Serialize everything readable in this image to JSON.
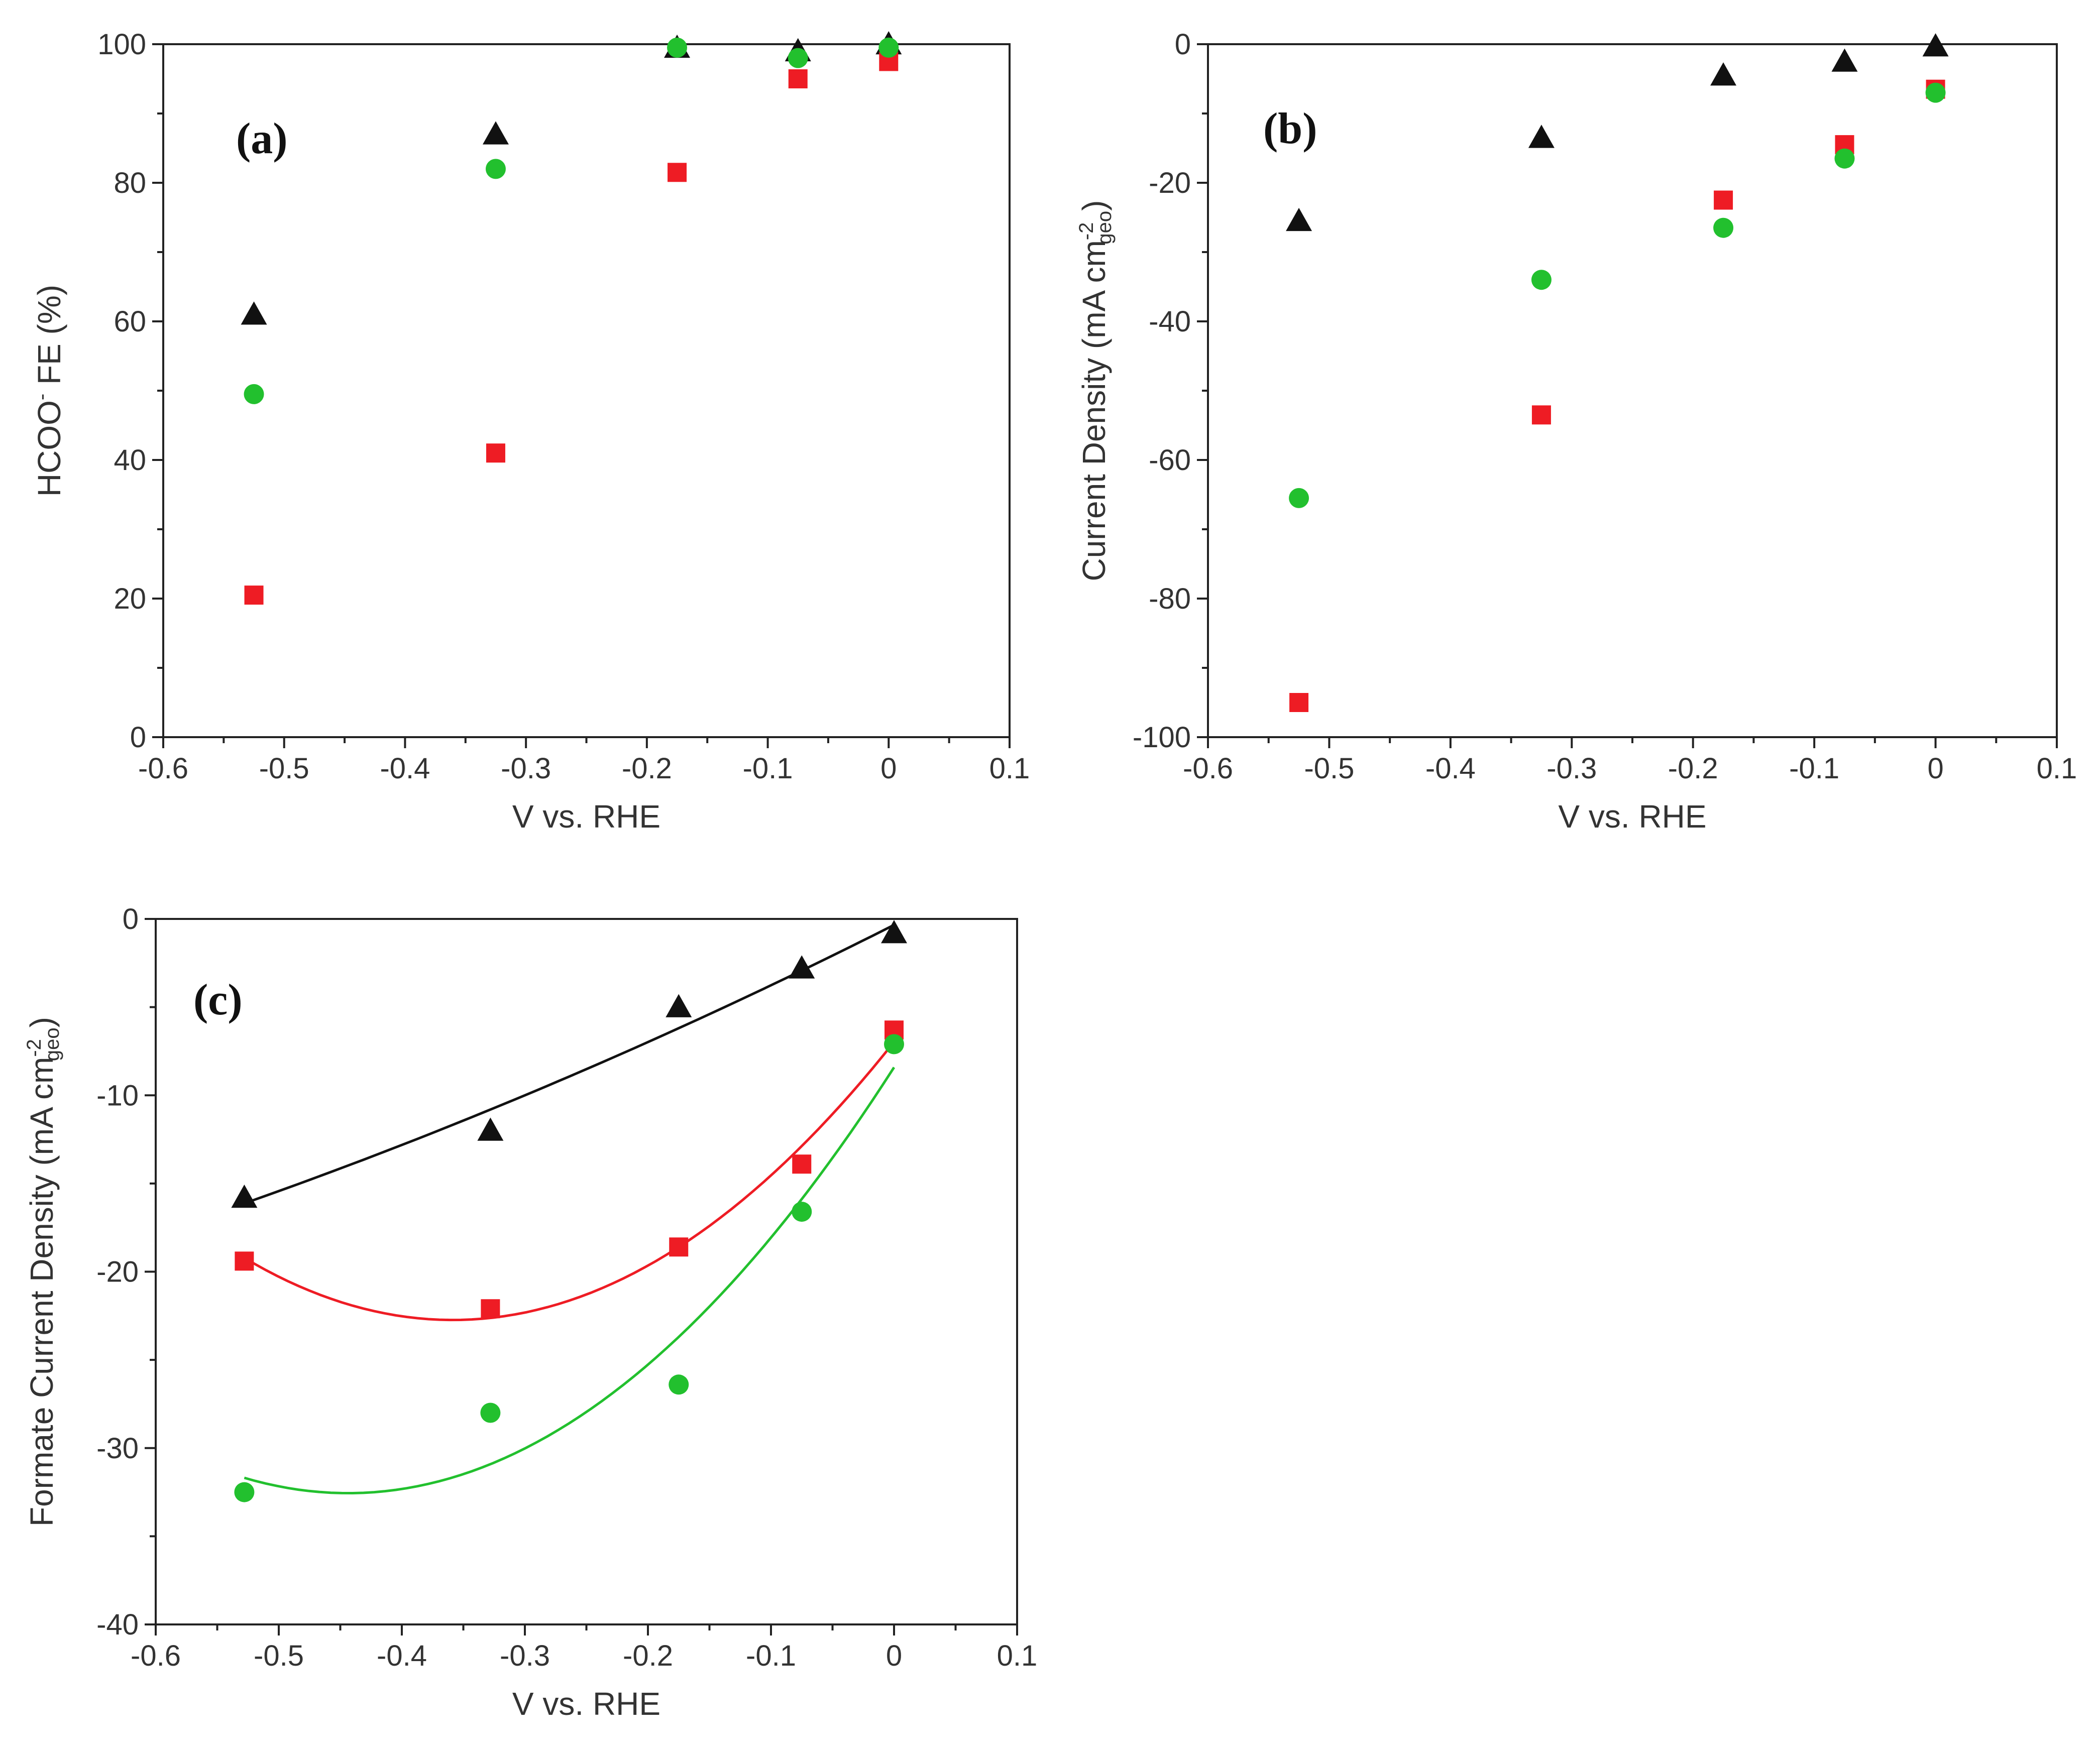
{
  "colors": {
    "black": "#111111",
    "red": "#ee1c24",
    "green": "#22c02e"
  },
  "chart_data": [
    {
      "type": "scatter",
      "panel_label": "(a)",
      "xlabel": "V vs. RHE",
      "ylabel": "HCOO⁻ FE (%)",
      "ylabel_parts": {
        "main": "HCOO",
        "sup": "-",
        "rest": " FE (%)"
      },
      "xlim": [
        -0.6,
        0.1
      ],
      "ylim": [
        0,
        100
      ],
      "xticks": [
        "-0.6",
        "-0.5",
        "-0.4",
        "-0.3",
        "-0.2",
        "-0.1",
        "0",
        "0.1"
      ],
      "yticks": [
        "0",
        "20",
        "40",
        "60",
        "80",
        "100"
      ],
      "series": [
        {
          "marker": "triangle",
          "color": "black",
          "x": [
            -0.525,
            -0.325,
            -0.175,
            -0.075,
            0.0
          ],
          "y": [
            61,
            87,
            99.5,
            99,
            100
          ]
        },
        {
          "marker": "square",
          "color": "red",
          "x": [
            -0.525,
            -0.325,
            -0.175,
            -0.075,
            0.0
          ],
          "y": [
            20.5,
            41,
            81.5,
            95,
            97.5
          ]
        },
        {
          "marker": "circle",
          "color": "green",
          "x": [
            -0.525,
            -0.325,
            -0.175,
            -0.075,
            0.0
          ],
          "y": [
            49.5,
            82,
            99.5,
            98,
            99.5
          ]
        }
      ]
    },
    {
      "type": "scatter",
      "panel_label": "(b)",
      "xlabel": "V vs. RHE",
      "ylabel": "Current Density (mA cm⁻² geo)",
      "ylabel_parts": {
        "main": "Current Density (mA cm",
        "sup": "-2",
        "sub": "geo",
        "rest": ")"
      },
      "xlim": [
        -0.6,
        0.1
      ],
      "ylim": [
        -100,
        0
      ],
      "xticks": [
        "-0.6",
        "-0.5",
        "-0.4",
        "-0.3",
        "-0.2",
        "-0.1",
        "0",
        "0.1"
      ],
      "yticks": [
        "-100",
        "-80",
        "-60",
        "-40",
        "-20",
        "0"
      ],
      "series": [
        {
          "marker": "triangle",
          "color": "black",
          "x": [
            -0.525,
            -0.325,
            -0.175,
            -0.075,
            0.0
          ],
          "y": [
            -25.5,
            -13.5,
            -4.5,
            -2.5,
            -0.3
          ]
        },
        {
          "marker": "square",
          "color": "red",
          "x": [
            -0.525,
            -0.325,
            -0.175,
            -0.075,
            0.0
          ],
          "y": [
            -95,
            -53.5,
            -22.5,
            -14.5,
            -6.5
          ]
        },
        {
          "marker": "circle",
          "color": "green",
          "x": [
            -0.525,
            -0.325,
            -0.175,
            -0.075,
            0.0
          ],
          "y": [
            -65.5,
            -34,
            -26.5,
            -16.5,
            -7
          ]
        }
      ]
    },
    {
      "type": "scatter",
      "panel_label": "(c)",
      "xlabel": "V vs. RHE",
      "ylabel": "Formate Current Density (mA cm⁻² geo)",
      "ylabel_parts": {
        "main": "Formate Current Density (mA cm",
        "sup": "-2",
        "sub": "geo",
        "rest": ")"
      },
      "xlim": [
        -0.6,
        0.1
      ],
      "ylim": [
        -40,
        0
      ],
      "xticks": [
        "-0.6",
        "-0.5",
        "-0.4",
        "-0.3",
        "-0.2",
        "-0.1",
        "0",
        "0.1"
      ],
      "yticks": [
        "-40",
        "-30",
        "-20",
        "-10",
        "0"
      ],
      "series": [
        {
          "marker": "triangle",
          "color": "black",
          "x": [
            -0.528,
            -0.328,
            -0.175,
            -0.075,
            0.0
          ],
          "y": [
            -15.8,
            -12.0,
            -5.0,
            -2.8,
            -0.8
          ],
          "fit": true
        },
        {
          "marker": "square",
          "color": "red",
          "x": [
            -0.528,
            -0.328,
            -0.175,
            -0.075,
            0.0
          ],
          "y": [
            -19.4,
            -22.1,
            -18.6,
            -13.9,
            -6.3
          ],
          "fit": true
        },
        {
          "marker": "circle",
          "color": "green",
          "x": [
            -0.528,
            -0.328,
            -0.175,
            -0.075,
            0.0
          ],
          "y": [
            -32.5,
            -28.0,
            -26.4,
            -16.6,
            -7.1
          ],
          "fit": true
        }
      ]
    }
  ]
}
